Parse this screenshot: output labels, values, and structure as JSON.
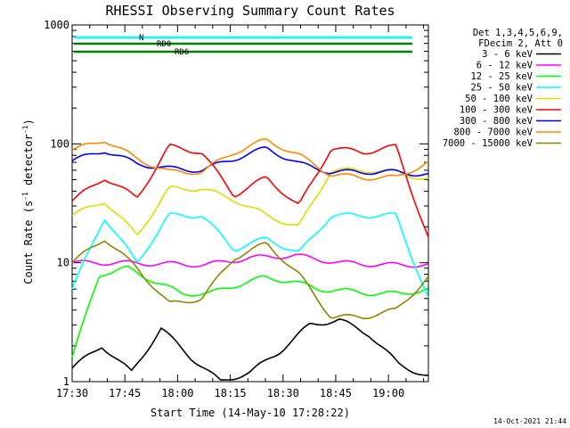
{
  "chart_data": {
    "type": "line",
    "title": "RHESSI Observing Summary Count Rates",
    "xlabel": "Start Time (14-May-10 17:28:22)",
    "ylabel_main": "Count Rate (s",
    "ylabel_sup1": "-1",
    "ylabel_mid": " detector",
    "ylabel_sup2": "-1",
    "ylabel_end": ")",
    "yscale": "log",
    "ylim": [
      1,
      1000
    ],
    "xlim_minutes": [
      1.63,
      103.0
    ],
    "x_ticks": [
      {
        "minute": 1.63,
        "label": "17:30"
      },
      {
        "minute": 16.63,
        "label": "17:45"
      },
      {
        "minute": 31.63,
        "label": "18:00"
      },
      {
        "minute": 46.63,
        "label": "18:15"
      },
      {
        "minute": 61.63,
        "label": "18:30"
      },
      {
        "minute": 76.63,
        "label": "18:45"
      },
      {
        "minute": 91.63,
        "label": "19:00"
      }
    ],
    "y_ticks": [
      {
        "value": 1,
        "label": "1"
      },
      {
        "value": 10,
        "label": "10"
      },
      {
        "value": 100,
        "label": "100"
      },
      {
        "value": 1000,
        "label": "1000"
      }
    ],
    "legend_header": [
      "Det 1,3,4,5,6,9,",
      "FDecim 2, Att 0"
    ],
    "legend_position": "right",
    "series": [
      {
        "name": "3 - 6 keV",
        "color": "#000000",
        "values": [
          1.3,
          2.0,
          1.2,
          2.8,
          1.6,
          1.0,
          1.2,
          1.8,
          3.0,
          3.3,
          2.5,
          1.4,
          1.1
        ]
      },
      {
        "name": "6 - 12 keV",
        "color": "#ff00ff",
        "values": [
          10,
          10,
          9.8,
          9.6,
          11,
          11.5,
          10,
          9.6,
          9.6
        ]
      },
      {
        "name": "12 - 25 keV",
        "color": "#00ff00",
        "values": [
          1.6,
          8,
          9,
          7,
          5.5,
          5.5,
          6.5,
          7.5,
          7,
          6,
          5.8,
          5.5,
          5.5,
          6
        ]
      },
      {
        "name": "25 - 50 keV",
        "color": "#00ffff",
        "values": [
          6,
          24,
          10,
          25,
          25,
          13,
          16,
          12,
          25,
          25,
          25,
          5
        ]
      },
      {
        "name": "50 - 100 keV",
        "color": "#dddd00",
        "values": [
          25,
          33,
          17,
          42,
          42,
          34,
          25,
          20,
          60,
          60,
          58,
          50
        ]
      },
      {
        "name": "100 - 300 keV",
        "color": "#ff0000",
        "values": [
          33,
          52,
          35,
          95,
          85,
          37,
          52,
          30,
          92,
          85,
          95,
          16
        ]
      },
      {
        "name": "300 - 800 keV",
        "color": "#0000ff",
        "values": [
          72,
          88,
          68,
          62,
          60,
          75,
          92,
          68,
          58,
          58,
          58,
          55
        ]
      },
      {
        "name": "800 - 7000 keV",
        "color": "#ff8800",
        "values": [
          88,
          108,
          75,
          58,
          58,
          85,
          108,
          80,
          55,
          52,
          52,
          70
        ]
      },
      {
        "name": "7000 - 15000 keV",
        "color": "#888800",
        "values": [
          10,
          16,
          9,
          4.5,
          5,
          11,
          14.5,
          8,
          3.5,
          3.5,
          4,
          7.5
        ]
      }
    ],
    "flags": [
      {
        "label": "N",
        "color": "#00ffff"
      },
      {
        "label": "RD0",
        "color": "#008000"
      },
      {
        "label": "RD6",
        "color": "#008000"
      }
    ]
  },
  "footer_stamp": "14-Oct-2021 21:44"
}
